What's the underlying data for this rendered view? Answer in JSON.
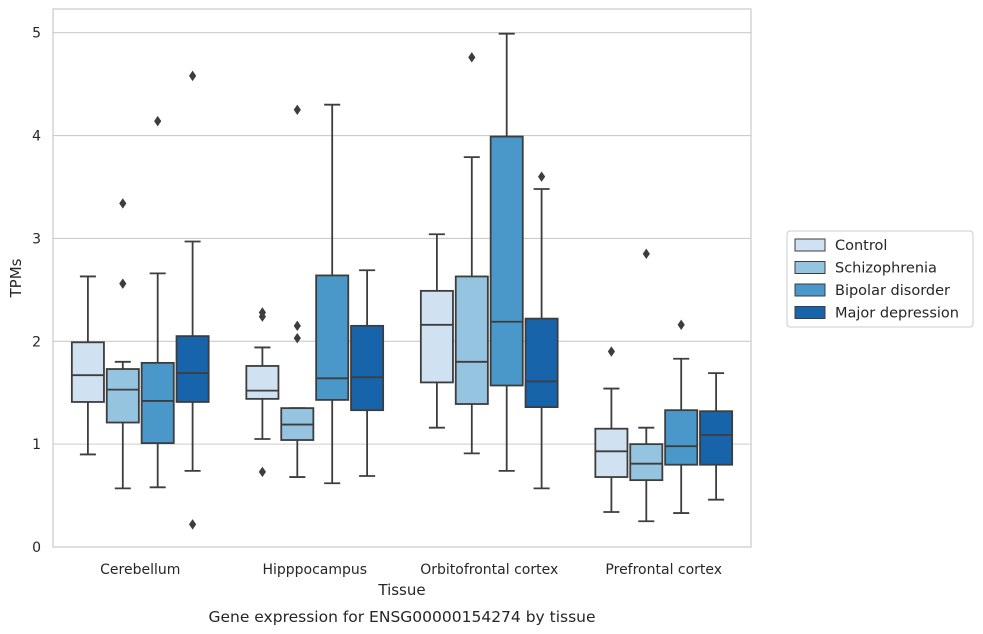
{
  "chart_data": {
    "type": "boxplot",
    "caption": "Gene expression for ENSG00000154274 by tissue",
    "xlabel": "Tissue",
    "ylabel": "TPMs",
    "ylim": [
      0,
      5.23
    ],
    "yticks": [
      0,
      1,
      2,
      3,
      4,
      5
    ],
    "grid": "horizontal",
    "legend_position": "right",
    "categories": [
      "Cerebellum",
      "Hipppocampus",
      "Orbitofrontal cortex",
      "Prefrontal cortex"
    ],
    "series": [
      {
        "name": "Control",
        "color": "#d0e1f2",
        "boxes": [
          {
            "whisker_low": 0.9,
            "q1": 1.41,
            "median": 1.67,
            "q3": 1.99,
            "whisker_high": 2.63,
            "outliers": []
          },
          {
            "whisker_low": 1.05,
            "q1": 1.44,
            "median": 1.52,
            "q3": 1.76,
            "whisker_high": 1.94,
            "outliers": [
              0.73,
              2.24,
              2.28
            ]
          },
          {
            "whisker_low": 1.16,
            "q1": 1.6,
            "median": 2.16,
            "q3": 2.49,
            "whisker_high": 3.04,
            "outliers": []
          },
          {
            "whisker_low": 0.34,
            "q1": 0.68,
            "median": 0.93,
            "q3": 1.15,
            "whisker_high": 1.54,
            "outliers": [
              1.9
            ]
          }
        ]
      },
      {
        "name": "Schizophrenia",
        "color": "#94c4df",
        "boxes": [
          {
            "whisker_low": 0.57,
            "q1": 1.21,
            "median": 1.53,
            "q3": 1.73,
            "whisker_high": 1.8,
            "outliers": [
              2.56,
              3.34
            ]
          },
          {
            "whisker_low": 0.68,
            "q1": 1.04,
            "median": 1.19,
            "q3": 1.35,
            "whisker_high": 1.35,
            "outliers": [
              2.03,
              2.15,
              4.25
            ]
          },
          {
            "whisker_low": 0.91,
            "q1": 1.39,
            "median": 1.8,
            "q3": 2.63,
            "whisker_high": 3.79,
            "outliers": [
              4.76
            ]
          },
          {
            "whisker_low": 0.25,
            "q1": 0.65,
            "median": 0.81,
            "q3": 1.0,
            "whisker_high": 1.16,
            "outliers": [
              2.85
            ]
          }
        ]
      },
      {
        "name": "Bipolar disorder",
        "color": "#4a98c9",
        "boxes": [
          {
            "whisker_low": 0.58,
            "q1": 1.01,
            "median": 1.42,
            "q3": 1.79,
            "whisker_high": 2.66,
            "outliers": [
              4.14
            ]
          },
          {
            "whisker_low": 0.62,
            "q1": 1.43,
            "median": 1.64,
            "q3": 2.64,
            "whisker_high": 4.3,
            "outliers": []
          },
          {
            "whisker_low": 0.74,
            "q1": 1.57,
            "median": 2.19,
            "q3": 3.99,
            "whisker_high": 4.99,
            "outliers": []
          },
          {
            "whisker_low": 0.33,
            "q1": 0.8,
            "median": 0.98,
            "q3": 1.33,
            "whisker_high": 1.83,
            "outliers": [
              2.16
            ]
          }
        ]
      },
      {
        "name": "Major depression",
        "color": "#1764ab",
        "boxes": [
          {
            "whisker_low": 0.74,
            "q1": 1.41,
            "median": 1.69,
            "q3": 2.05,
            "whisker_high": 2.97,
            "outliers": [
              0.22,
              4.58
            ]
          },
          {
            "whisker_low": 0.69,
            "q1": 1.33,
            "median": 1.65,
            "q3": 2.15,
            "whisker_high": 2.69,
            "outliers": []
          },
          {
            "whisker_low": 0.57,
            "q1": 1.36,
            "median": 1.61,
            "q3": 2.22,
            "whisker_high": 3.48,
            "outliers": [
              3.6
            ]
          },
          {
            "whisker_low": 0.46,
            "q1": 0.8,
            "median": 1.09,
            "q3": 1.32,
            "whisker_high": 1.69,
            "outliers": []
          }
        ]
      }
    ]
  }
}
